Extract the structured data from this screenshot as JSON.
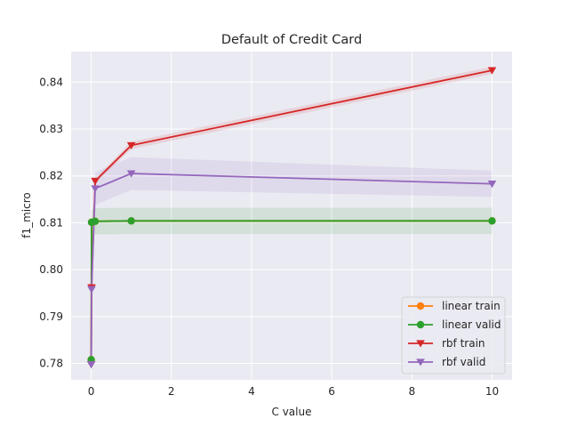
{
  "chart_data": {
    "type": "line",
    "title": "Default of Credit Card",
    "xlabel": "C value",
    "ylabel": "f1_micro",
    "xlim": [
      -0.5,
      10.5
    ],
    "ylim": [
      0.7765,
      0.8465
    ],
    "xticks": [
      0,
      2,
      4,
      6,
      8,
      10
    ],
    "yticks": [
      0.78,
      0.79,
      0.8,
      0.81,
      0.82,
      0.83,
      0.84
    ],
    "ytick_labels": [
      "0.78",
      "0.79",
      "0.80",
      "0.81",
      "0.82",
      "0.83",
      "0.84"
    ],
    "grid": true,
    "legend_position": "lower-right",
    "background": "#eaeaf2",
    "x": [
      0.001,
      0.01,
      0.1,
      1,
      10
    ],
    "series": [
      {
        "name": "linear train",
        "color": "#ff7f0e",
        "marker": "circle",
        "values": [
          0.7808,
          0.8101,
          0.8103,
          0.8104,
          0.8104
        ],
        "band": [
          0.0002,
          0.0003,
          0.0003,
          0.0003,
          0.0003
        ]
      },
      {
        "name": "linear valid",
        "color": "#2ca02c",
        "marker": "circle",
        "values": [
          0.7808,
          0.8101,
          0.8103,
          0.8104,
          0.8104
        ],
        "band": [
          0.001,
          0.0028,
          0.0028,
          0.0028,
          0.0028
        ]
      },
      {
        "name": "rbf train",
        "color": "#d62728",
        "marker": "triangle-down",
        "values": [
          0.7798,
          0.7962,
          0.8189,
          0.8265,
          0.8425
        ],
        "band": [
          0.0002,
          0.0004,
          0.0005,
          0.0008,
          0.0008
        ]
      },
      {
        "name": "rbf valid",
        "color": "#9467bd",
        "marker": "triangle-down",
        "values": [
          0.7798,
          0.7958,
          0.8173,
          0.8205,
          0.8183
        ],
        "band": [
          0.001,
          0.0035,
          0.0035,
          0.0035,
          0.0028
        ]
      }
    ]
  }
}
